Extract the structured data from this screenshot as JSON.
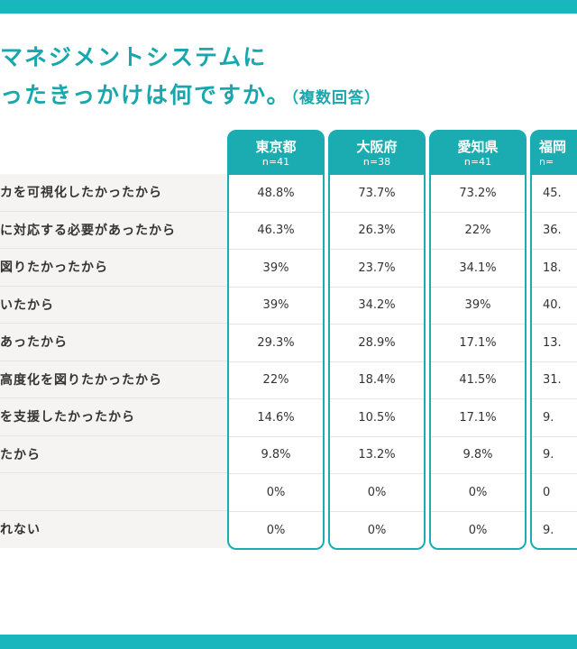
{
  "title": {
    "line1": "マネジメントシステムに",
    "line2": "ったきっかけは何ですか。",
    "line2_sub": "（複数回答）"
  },
  "rows": [
    "カを可視化したかったから",
    "に対応する必要があったから",
    "図りたかったから",
    "いたから",
    "あったから",
    "高度化を図りたかったから",
    "を支援したかったから",
    "たから",
    "",
    "れない"
  ],
  "columns": [
    {
      "name": "東京都",
      "n": "n=41",
      "values": [
        "48.8%",
        "46.3%",
        "39%",
        "39%",
        "29.3%",
        "22%",
        "14.6%",
        "9.8%",
        "0%",
        "0%"
      ]
    },
    {
      "name": "大阪府",
      "n": "n=38",
      "values": [
        "73.7%",
        "26.3%",
        "23.7%",
        "34.2%",
        "28.9%",
        "18.4%",
        "10.5%",
        "13.2%",
        "0%",
        "0%"
      ]
    },
    {
      "name": "愛知県",
      "n": "n=41",
      "values": [
        "73.2%",
        "22%",
        "34.1%",
        "39%",
        "17.1%",
        "41.5%",
        "17.1%",
        "9.8%",
        "0%",
        "0%"
      ]
    },
    {
      "name": "福岡",
      "n": "n=",
      "values": [
        "45.",
        "36.",
        "18.",
        "40.",
        "13.",
        "31.",
        "9.",
        "9.",
        "0",
        "9."
      ]
    }
  ],
  "colors": {
    "accent": "#1aacb0",
    "title": "#17a7ad",
    "row_bg": "#f5f4f3"
  }
}
